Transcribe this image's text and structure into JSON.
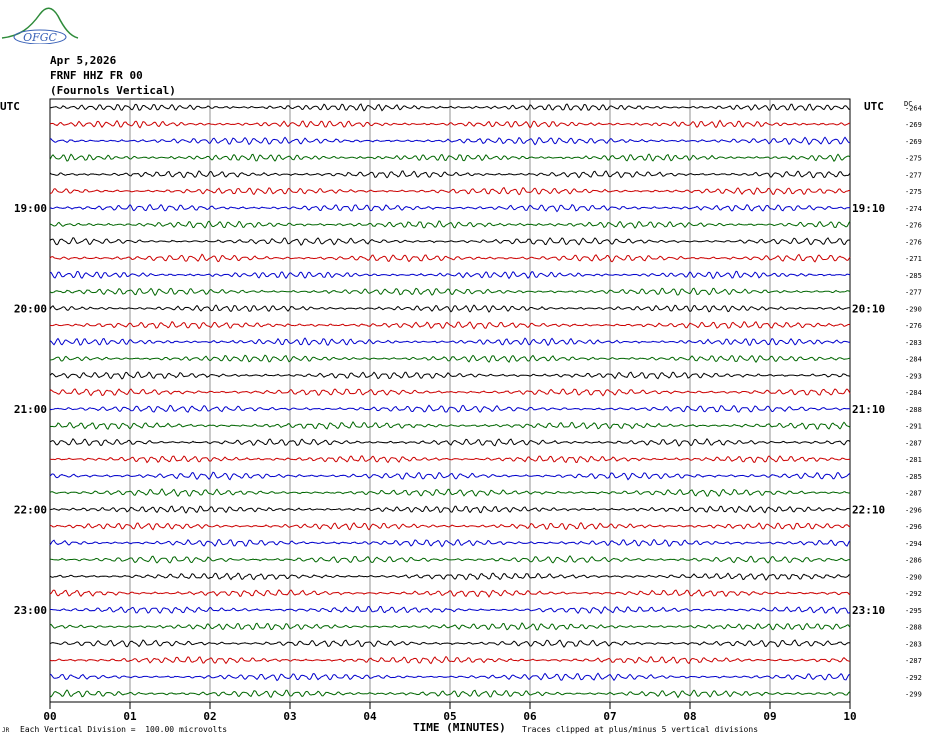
{
  "header": {
    "logo_text": "OFGC",
    "date": "Apr 5,2026",
    "station": "FRNF HHZ FR 00",
    "location": "(Fournols Vertical)"
  },
  "left_axis_label": "UTC",
  "right_axis_label": "UTC",
  "dc_label": "DC",
  "footer": {
    "scale_note": "Each Vertical Division =  100.00 microvolts",
    "clip_note": "Traces clipped at plus/minus 5 vertical divisions",
    "corner_mark": "JR"
  },
  "colors": {
    "trace_cycle": [
      "#000000",
      "#cc0000",
      "#0000cc",
      "#006600"
    ],
    "grid": "#000000"
  },
  "chart_data": {
    "type": "line",
    "title": "",
    "xlabel": "TIME (MINUTES)",
    "ylabel": "",
    "x_ticks": [
      "00",
      "01",
      "02",
      "03",
      "04",
      "05",
      "06",
      "07",
      "08",
      "09",
      "10"
    ],
    "xlim": [
      0,
      10
    ],
    "trace_count": 36,
    "trace_minutes_per_row": 10,
    "left_time_labels": [
      {
        "row": 6,
        "label": "19:00"
      },
      {
        "row": 12,
        "label": "20:00"
      },
      {
        "row": 18,
        "label": "21:00"
      },
      {
        "row": 24,
        "label": "22:00"
      },
      {
        "row": 30,
        "label": "23:00"
      }
    ],
    "right_time_labels": [
      {
        "row": 6,
        "label": "19:10"
      },
      {
        "row": 12,
        "label": "20:10"
      },
      {
        "row": 18,
        "label": "21:10"
      },
      {
        "row": 24,
        "label": "22:10"
      },
      {
        "row": 30,
        "label": "23:10"
      }
    ],
    "dc_offsets": [
      "-264",
      "-269",
      "-269",
      "-275",
      "-277",
      "-275",
      "-274",
      "-276",
      "-276",
      "-271",
      "-285",
      "-277",
      "-290",
      "-276",
      "-283",
      "-284",
      "-293",
      "-284",
      "-288",
      "-291",
      "-287",
      "-281",
      "-285",
      "-287",
      "-296",
      "-296",
      "-294",
      "-286",
      "-290",
      "-292",
      "-295",
      "-288",
      "-283",
      "-287",
      "-292",
      "-299"
    ]
  }
}
